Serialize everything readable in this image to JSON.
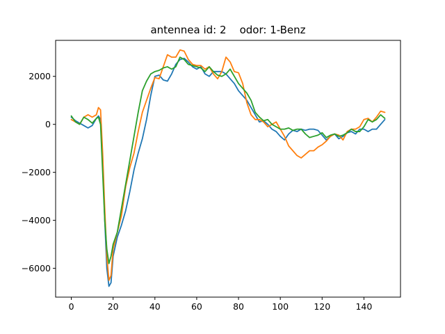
{
  "chart_data": {
    "type": "line",
    "title": "antennea id: 2    odor: 1-Benz",
    "xlabel": "",
    "ylabel": "",
    "xlim": [
      -7.5,
      157.5
    ],
    "ylim": [
      -7200,
      3500
    ],
    "xticks": [
      0,
      20,
      40,
      60,
      80,
      100,
      120,
      140
    ],
    "yticks": [
      -6000,
      -4000,
      -2000,
      0,
      2000
    ],
    "ytick_labels": [
      "−6000",
      "−4000",
      "−2000",
      "0",
      "2000"
    ],
    "grid": false,
    "legend": "none",
    "series": [
      {
        "color": "#1f77b4",
        "x": [
          0,
          2,
          4,
          6,
          8,
          10,
          12,
          13,
          14,
          15,
          16,
          17,
          18,
          19,
          20,
          22,
          24,
          26,
          28,
          30,
          32,
          34,
          36,
          38,
          40,
          42,
          44,
          46,
          48,
          50,
          52,
          54,
          56,
          58,
          60,
          62,
          64,
          66,
          68,
          70,
          72,
          74,
          76,
          78,
          80,
          82,
          84,
          86,
          88,
          90,
          92,
          94,
          96,
          98,
          100,
          102,
          104,
          106,
          108,
          110,
          112,
          114,
          116,
          118,
          120,
          122,
          124,
          126,
          128,
          130,
          132,
          134,
          136,
          138,
          140,
          142,
          144,
          146,
          148,
          150
        ],
        "y": [
          300,
          150,
          50,
          -50,
          -150,
          -50,
          250,
          350,
          200,
          -1500,
          -4000,
          -6000,
          -6750,
          -6600,
          -5500,
          -4700,
          -4200,
          -3600,
          -2800,
          -1900,
          -1200,
          -600,
          200,
          1200,
          2000,
          2050,
          1850,
          1800,
          2100,
          2500,
          2700,
          2750,
          2600,
          2400,
          2300,
          2400,
          2100,
          2000,
          2200,
          2200,
          2200,
          2100,
          1900,
          1700,
          1400,
          1200,
          1000,
          700,
          400,
          100,
          150,
          0,
          -200,
          -300,
          -500,
          -650,
          -400,
          -250,
          -300,
          -200,
          -250,
          -200,
          -200,
          -250,
          -450,
          -650,
          -500,
          -400,
          -600,
          -500,
          -350,
          -300,
          -400,
          -200,
          -200,
          -300,
          -200,
          -200,
          0,
          200
        ]
      },
      {
        "color": "#ff7f0e",
        "x": [
          0,
          2,
          4,
          6,
          8,
          10,
          12,
          13,
          14,
          15,
          16,
          17,
          18,
          19,
          20,
          22,
          24,
          26,
          28,
          30,
          32,
          34,
          36,
          38,
          40,
          42,
          44,
          46,
          48,
          50,
          52,
          54,
          56,
          58,
          60,
          62,
          64,
          66,
          68,
          70,
          72,
          74,
          76,
          78,
          80,
          82,
          84,
          86,
          88,
          90,
          92,
          94,
          96,
          98,
          100,
          102,
          104,
          106,
          108,
          110,
          112,
          114,
          116,
          118,
          120,
          122,
          124,
          126,
          128,
          130,
          132,
          134,
          136,
          138,
          140,
          142,
          144,
          146,
          148,
          150
        ],
        "y": [
          200,
          100,
          0,
          300,
          400,
          300,
          400,
          700,
          600,
          -1200,
          -3500,
          -5500,
          -6500,
          -6300,
          -5200,
          -4500,
          -3800,
          -2600,
          -1800,
          -1200,
          -300,
          500,
          1000,
          1500,
          1950,
          1900,
          2400,
          2900,
          2800,
          2800,
          3100,
          3050,
          2700,
          2500,
          2450,
          2450,
          2300,
          2400,
          2100,
          1900,
          2200,
          2800,
          2600,
          2200,
          2150,
          1700,
          900,
          400,
          200,
          200,
          100,
          -100,
          0,
          100,
          -200,
          -500,
          -900,
          -1100,
          -1300,
          -1400,
          -1250,
          -1100,
          -1100,
          -950,
          -850,
          -700,
          -500,
          -400,
          -450,
          -650,
          -300,
          -200,
          -200,
          -100,
          200,
          250,
          100,
          300,
          550,
          500
        ]
      },
      {
        "color": "#2ca02c",
        "x": [
          0,
          2,
          4,
          6,
          8,
          10,
          12,
          13,
          14,
          15,
          16,
          17,
          18,
          19,
          20,
          22,
          24,
          26,
          28,
          30,
          32,
          34,
          36,
          38,
          40,
          42,
          44,
          46,
          48,
          50,
          52,
          54,
          56,
          58,
          60,
          62,
          64,
          66,
          68,
          70,
          72,
          74,
          76,
          78,
          80,
          82,
          84,
          86,
          88,
          90,
          92,
          94,
          96,
          98,
          100,
          102,
          104,
          106,
          108,
          110,
          112,
          114,
          116,
          118,
          120,
          122,
          124,
          126,
          128,
          130,
          132,
          134,
          136,
          138,
          140,
          142,
          144,
          146,
          148,
          150
        ],
        "y": [
          350,
          100,
          0,
          300,
          200,
          50,
          250,
          300,
          0,
          -2000,
          -4000,
          -5200,
          -5800,
          -5500,
          -5000,
          -4500,
          -3500,
          -2500,
          -1500,
          -500,
          500,
          1400,
          1800,
          2100,
          2200,
          2250,
          2350,
          2400,
          2300,
          2400,
          2800,
          2700,
          2500,
          2450,
          2400,
          2350,
          2200,
          2400,
          2200,
          2050,
          2000,
          2100,
          2300,
          2000,
          1700,
          1500,
          1300,
          1000,
          500,
          300,
          150,
          200,
          0,
          -100,
          -200,
          -200,
          -150,
          -250,
          -200,
          -200,
          -400,
          -550,
          -500,
          -450,
          -350,
          -550,
          -450,
          -400,
          -500,
          -450,
          -350,
          -200,
          -300,
          -300,
          -100,
          200,
          100,
          200,
          400,
          250
        ]
      }
    ]
  }
}
